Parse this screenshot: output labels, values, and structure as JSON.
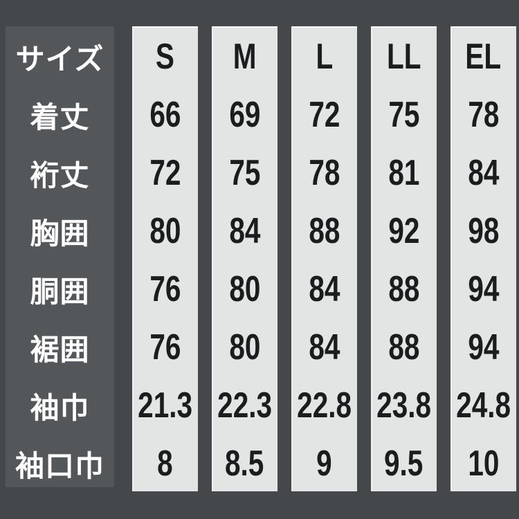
{
  "colors": {
    "background": "#45484b",
    "label_panel": "#54575a",
    "column_fill": "#e3e4e4",
    "column_highlight_edge": "#f7f8f8",
    "label_text": "#ffffff",
    "value_text": "#1b1c1d"
  },
  "table": {
    "header": {
      "label": "サイズ",
      "sizes": [
        "S",
        "M",
        "L",
        "LL",
        "EL"
      ]
    },
    "rows": [
      {
        "label": "着丈",
        "values": [
          "66",
          "69",
          "72",
          "75",
          "78"
        ]
      },
      {
        "label": "裄丈",
        "values": [
          "72",
          "75",
          "78",
          "81",
          "84"
        ]
      },
      {
        "label": "胸囲",
        "values": [
          "80",
          "84",
          "88",
          "92",
          "98"
        ]
      },
      {
        "label": "胴囲",
        "values": [
          "76",
          "80",
          "84",
          "88",
          "94"
        ]
      },
      {
        "label": "裾囲",
        "values": [
          "76",
          "80",
          "84",
          "88",
          "94"
        ]
      },
      {
        "label": "袖巾",
        "values": [
          "21.3",
          "22.3",
          "22.8",
          "23.8",
          "24.8"
        ]
      },
      {
        "label": "袖口巾",
        "values": [
          "8",
          "8.5",
          "9",
          "9.5",
          "10"
        ]
      }
    ]
  },
  "chart_data": {
    "type": "table",
    "header_label": "サイズ",
    "columns": [
      "S",
      "M",
      "L",
      "LL",
      "EL"
    ],
    "rows": [
      {
        "label": "着丈",
        "values": [
          66,
          69,
          72,
          75,
          78
        ]
      },
      {
        "label": "裄丈",
        "values": [
          72,
          75,
          78,
          81,
          84
        ]
      },
      {
        "label": "胸囲",
        "values": [
          80,
          84,
          88,
          92,
          98
        ]
      },
      {
        "label": "胴囲",
        "values": [
          76,
          80,
          84,
          88,
          94
        ]
      },
      {
        "label": "裾囲",
        "values": [
          76,
          80,
          84,
          88,
          94
        ]
      },
      {
        "label": "袖巾",
        "values": [
          21.3,
          22.3,
          22.8,
          23.8,
          24.8
        ]
      },
      {
        "label": "袖口巾",
        "values": [
          8,
          8.5,
          9,
          9.5,
          10
        ]
      }
    ],
    "layout": "size labels in left dark panel; one light vertical column per size; values read top to bottom"
  }
}
